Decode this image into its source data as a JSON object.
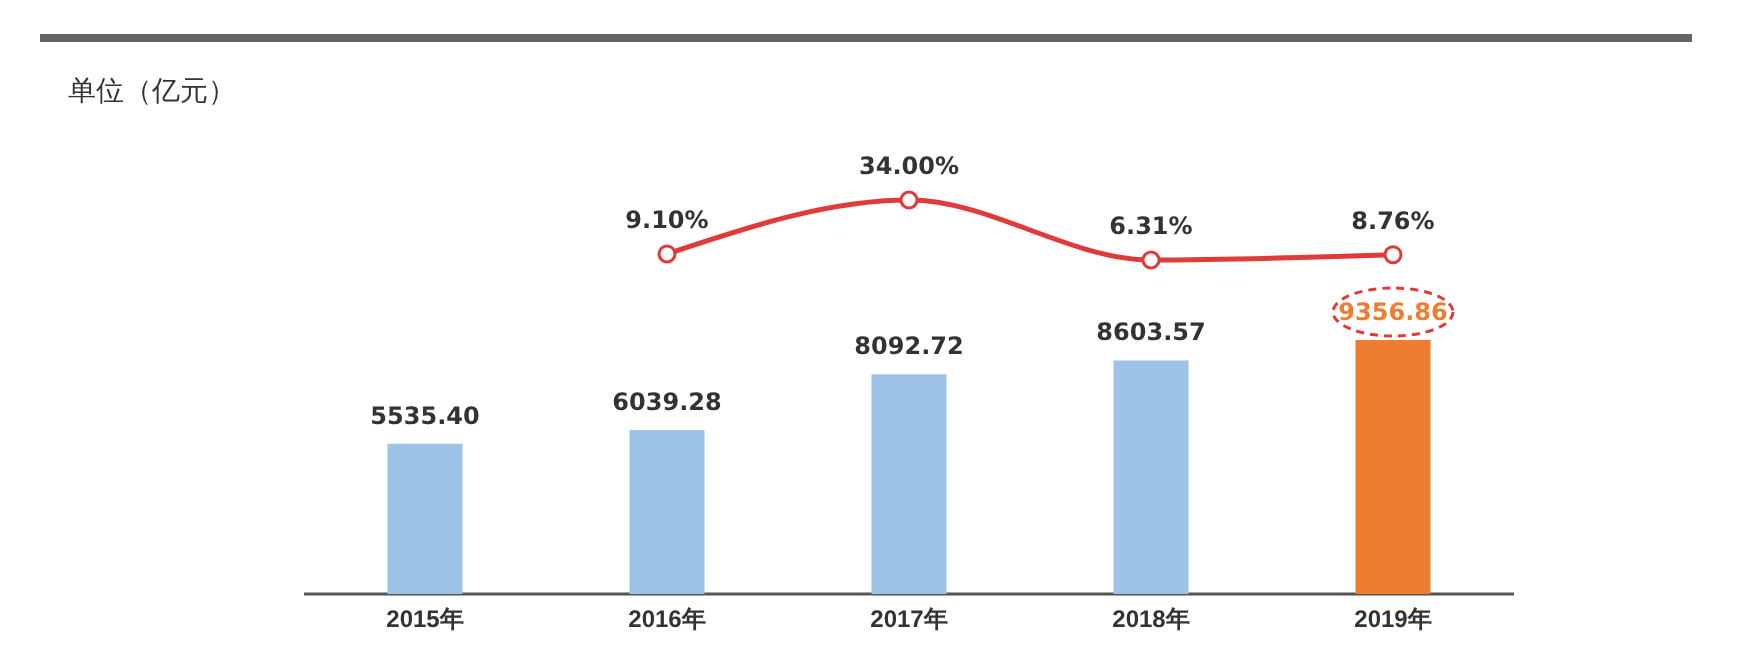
{
  "chart_data": [
    {
      "type": "bar",
      "annotations": [
        "单位（亿元）"
      ],
      "categories": [
        "2015年",
        "2016年",
        "2017年",
        "2018年",
        "2019年"
      ],
      "tick_labels": "x",
      "series": [
        {
          "color": "#9dc3e6",
          "colors": [
            "#9dc3e6",
            "#9dc3e6",
            "#9dc3e6",
            "#9dc3e6",
            "#ed7d31"
          ],
          "values": [
            5535.4,
            6039.28,
            8092.72,
            8603.57,
            9356.86
          ],
          "value_labels": [
            "5535.40",
            "6039.28",
            "8092.72",
            "8603.57",
            "9356.86"
          ]
        }
      ]
    },
    {
      "type": "line",
      "categories": [
        null,
        null,
        null,
        null,
        null
      ],
      "tick_labels": false,
      "marker": "circle",
      "series": [
        {
          "color": "#e03a3a",
          "values": [
            null,
            9.1,
            34.0,
            6.31,
            8.76
          ],
          "value_labels": [
            null,
            "9.10%",
            "34.00%",
            "6.31%",
            "8.76%"
          ]
        }
      ]
    }
  ]
}
